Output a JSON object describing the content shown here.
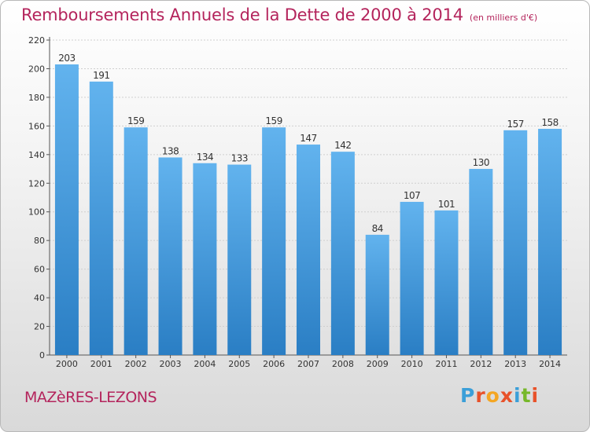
{
  "header": {
    "title": "Remboursements Annuels de la Dette de 2000 à 2014",
    "unit": "(en milliers d'€)"
  },
  "footer": {
    "commune": "MAZèRES-LEZONS",
    "brand_letters": [
      "P",
      "r",
      "o",
      "x",
      "i",
      "t",
      "i"
    ],
    "brand_colors": [
      "#3b9fd8",
      "#e8522a",
      "#f4a623",
      "#e8522a",
      "#3b9fd8",
      "#77b82a",
      "#e8522a"
    ]
  },
  "colors": {
    "accent": "#b4245c",
    "bar_light": "#62b3ee",
    "bar_dark": "#2a7ec4",
    "grid": "#cfcfcf"
  },
  "chart_data": {
    "type": "bar",
    "title": "Remboursements Annuels de la Dette de 2000 à 2014",
    "subtitle": "(en milliers d'€)",
    "xlabel": "",
    "ylabel": "",
    "ylim": [
      0,
      220
    ],
    "yticks": [
      0,
      20,
      40,
      60,
      80,
      100,
      120,
      140,
      160,
      180,
      200,
      220
    ],
    "grid": true,
    "categories": [
      "2000",
      "2001",
      "2002",
      "2003",
      "2004",
      "2005",
      "2006",
      "2007",
      "2008",
      "2009",
      "2010",
      "2011",
      "2012",
      "2013",
      "2014"
    ],
    "values": [
      203,
      191,
      159,
      138,
      134,
      133,
      159,
      147,
      142,
      84,
      107,
      101,
      130,
      157,
      158
    ]
  }
}
